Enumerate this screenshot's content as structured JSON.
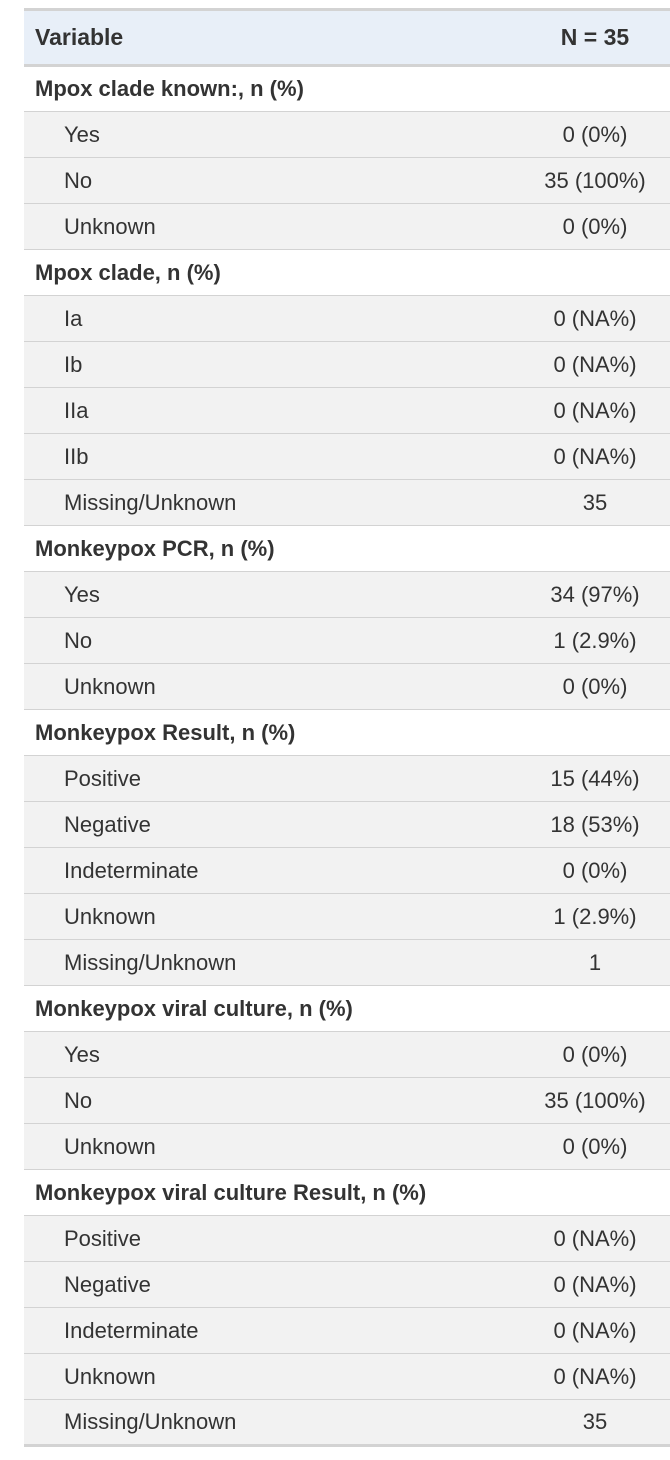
{
  "header": {
    "variable": "Variable",
    "n": "N = 35"
  },
  "groups": [
    {
      "title": "Mpox clade known:, n (%)",
      "rows": [
        {
          "label": "Yes",
          "value": "0 (0%)"
        },
        {
          "label": "No",
          "value": "35 (100%)"
        },
        {
          "label": "Unknown",
          "value": "0 (0%)"
        }
      ]
    },
    {
      "title": "Mpox clade, n (%)",
      "rows": [
        {
          "label": "Ia",
          "value": "0 (NA%)"
        },
        {
          "label": "Ib",
          "value": "0 (NA%)"
        },
        {
          "label": "IIa",
          "value": "0 (NA%)"
        },
        {
          "label": "IIb",
          "value": "0 (NA%)"
        },
        {
          "label": "Missing/Unknown",
          "value": "35"
        }
      ]
    },
    {
      "title": "Monkeypox PCR, n (%)",
      "rows": [
        {
          "label": "Yes",
          "value": "34 (97%)"
        },
        {
          "label": "No",
          "value": "1 (2.9%)"
        },
        {
          "label": "Unknown",
          "value": "0 (0%)"
        }
      ]
    },
    {
      "title": "Monkeypox Result, n (%)",
      "rows": [
        {
          "label": "Positive",
          "value": "15 (44%)"
        },
        {
          "label": "Negative",
          "value": "18 (53%)"
        },
        {
          "label": "Indeterminate",
          "value": "0 (0%)"
        },
        {
          "label": "Unknown",
          "value": "1 (2.9%)"
        },
        {
          "label": "Missing/Unknown",
          "value": "1"
        }
      ]
    },
    {
      "title": "Monkeypox viral culture, n (%)",
      "rows": [
        {
          "label": "Yes",
          "value": "0 (0%)"
        },
        {
          "label": "No",
          "value": "35 (100%)"
        },
        {
          "label": "Unknown",
          "value": "0 (0%)"
        }
      ]
    },
    {
      "title": "Monkeypox viral culture Result, n (%)",
      "rows": [
        {
          "label": "Positive",
          "value": "0 (NA%)"
        },
        {
          "label": "Negative",
          "value": "0 (NA%)"
        },
        {
          "label": "Indeterminate",
          "value": "0 (NA%)"
        },
        {
          "label": "Unknown",
          "value": "0 (NA%)"
        },
        {
          "label": "Missing/Unknown",
          "value": "35"
        }
      ]
    }
  ]
}
